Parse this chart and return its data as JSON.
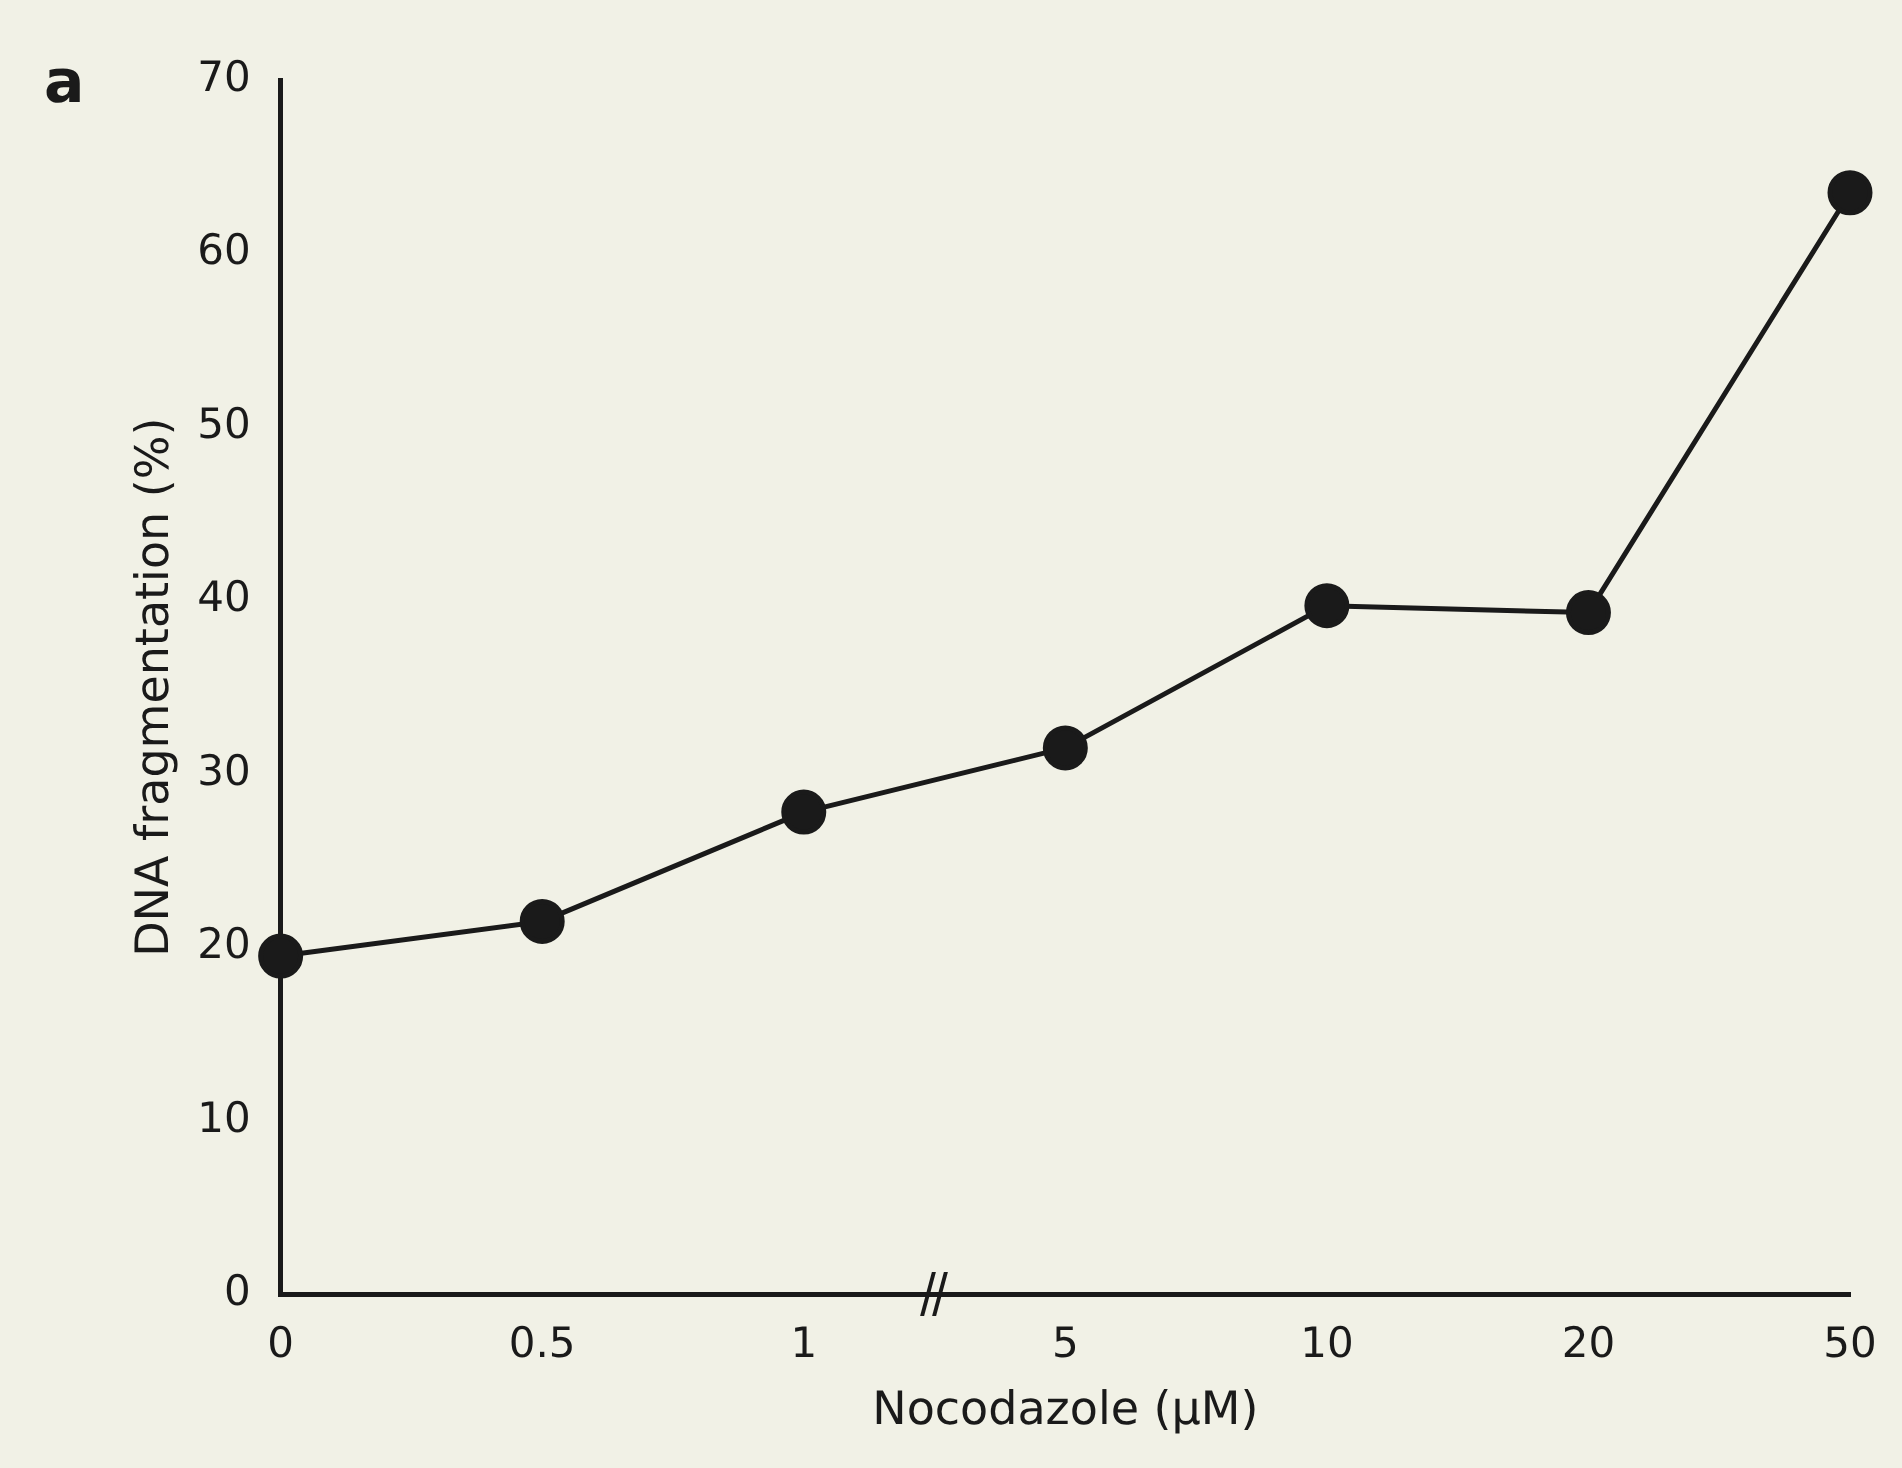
{
  "chart_data": {
    "type": "line",
    "xlabel": "Nocodazole (μM)",
    "ylabel": "DNA fragmentation (%)",
    "categories": [
      "0",
      "0.5",
      "1",
      "5",
      "10",
      "20",
      "50"
    ],
    "series": [
      {
        "color": "#1a1a1a",
        "values": [
          19.5,
          21.5,
          27.8,
          31.5,
          39.7,
          39.3,
          63.5
        ]
      }
    ],
    "ylim": [
      0,
      70
    ],
    "yticks": [
      0,
      10,
      20,
      30,
      40,
      50,
      60,
      70
    ],
    "grid": false,
    "legend": false,
    "marker": "circle",
    "line_style": "solid",
    "annotations": [
      "a"
    ]
  }
}
